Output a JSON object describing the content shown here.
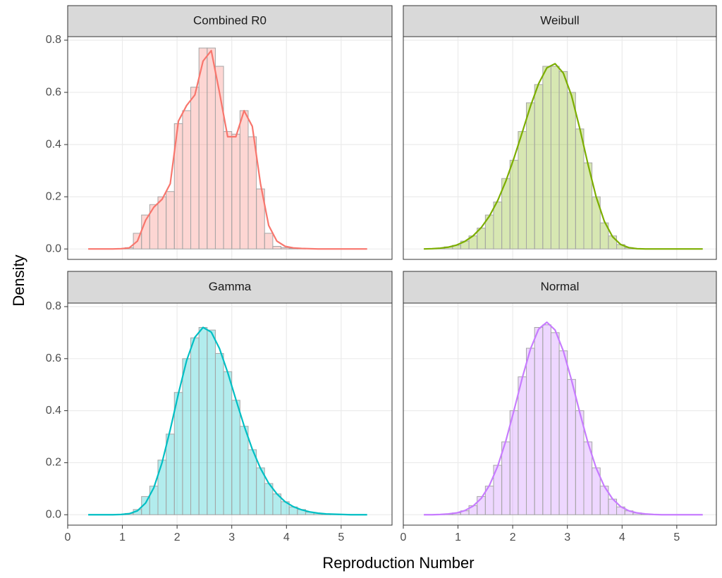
{
  "chart_data": {
    "type": "histogram",
    "x_label": "Reproduction Number",
    "y_label": "Density",
    "xlim": [
      0,
      5.93
    ],
    "xticks": [
      0,
      1,
      2,
      3,
      4,
      5
    ],
    "ylim": [
      -0.04,
      0.8135
    ],
    "yticks": [
      {
        "value": 0,
        "label": "0.0"
      },
      0.2,
      0.4,
      0.6,
      0.8
    ],
    "grid": true,
    "bins": [
      0.3,
      0.45,
      0.6,
      0.75,
      0.9,
      1.05,
      1.2,
      1.35,
      1.5,
      1.65,
      1.8,
      1.95,
      2.1,
      2.25,
      2.4,
      2.55,
      2.7,
      2.85,
      3.0,
      3.15,
      3.3,
      3.45,
      3.6,
      3.75,
      3.9,
      4.05,
      4.2,
      4.35,
      4.5,
      4.65,
      4.8,
      4.95,
      5.1,
      5.25,
      5.4,
      5.55
    ],
    "x": [
      0.375,
      0.525,
      0.675,
      0.825,
      0.975,
      1.125,
      1.275,
      1.425,
      1.575,
      1.725,
      1.875,
      2.025,
      2.175,
      2.325,
      2.475,
      2.625,
      2.775,
      2.925,
      3.075,
      3.225,
      3.375,
      3.525,
      3.675,
      3.825,
      3.975,
      4.125,
      4.275,
      4.425,
      4.575,
      4.725,
      4.875,
      5.025,
      5.175,
      5.325,
      5.475
    ],
    "panels": [
      {
        "name": "Combined R0",
        "color": "#F8766D",
        "values": [
          0,
          0,
          0,
          0,
          0.001,
          0.005,
          0.06,
          0.13,
          0.17,
          0.2,
          0.22,
          0.48,
          0.53,
          0.62,
          0.77,
          0.77,
          0.7,
          0.45,
          0.44,
          0.53,
          0.43,
          0.23,
          0.06,
          0.01,
          0.005,
          0.002,
          0.001,
          0,
          0,
          0,
          0,
          0,
          0,
          0,
          0
        ],
        "density": [
          0,
          0,
          0,
          0,
          0.001,
          0.004,
          0.03,
          0.11,
          0.16,
          0.19,
          0.25,
          0.49,
          0.55,
          0.59,
          0.72,
          0.76,
          0.6,
          0.43,
          0.43,
          0.53,
          0.47,
          0.25,
          0.09,
          0.03,
          0.01,
          0.004,
          0.002,
          0.001,
          0,
          0,
          0,
          0,
          0,
          0,
          0
        ]
      },
      {
        "name": "Weibull",
        "color": "#7CAE00",
        "values": [
          0,
          0.001,
          0.003,
          0.008,
          0.014,
          0.03,
          0.05,
          0.08,
          0.13,
          0.18,
          0.27,
          0.34,
          0.45,
          0.56,
          0.63,
          0.7,
          0.7,
          0.68,
          0.6,
          0.46,
          0.33,
          0.2,
          0.1,
          0.05,
          0.017,
          0.005,
          0.001,
          0,
          0,
          0,
          0,
          0,
          0,
          0,
          0
        ],
        "density": [
          0,
          0.001,
          0.003,
          0.007,
          0.015,
          0.029,
          0.05,
          0.082,
          0.126,
          0.185,
          0.26,
          0.349,
          0.447,
          0.547,
          0.634,
          0.694,
          0.71,
          0.674,
          0.588,
          0.463,
          0.326,
          0.2,
          0.106,
          0.047,
          0.017,
          0.005,
          0.001,
          0,
          0,
          0,
          0,
          0,
          0,
          0,
          0
        ]
      },
      {
        "name": "Gamma",
        "color": "#00BFC4",
        "values": [
          0,
          0,
          0,
          0,
          0.001,
          0.005,
          0.02,
          0.07,
          0.11,
          0.21,
          0.31,
          0.47,
          0.6,
          0.68,
          0.72,
          0.71,
          0.62,
          0.55,
          0.44,
          0.34,
          0.25,
          0.18,
          0.12,
          0.08,
          0.05,
          0.03,
          0.02,
          0.01,
          0.006,
          0.003,
          0.002,
          0.001,
          0,
          0,
          0
        ],
        "density": [
          0,
          0,
          0,
          0,
          0.001,
          0.004,
          0.015,
          0.045,
          0.104,
          0.2,
          0.327,
          0.466,
          0.593,
          0.682,
          0.72,
          0.702,
          0.639,
          0.547,
          0.443,
          0.342,
          0.252,
          0.178,
          0.121,
          0.08,
          0.05,
          0.031,
          0.019,
          0.011,
          0.006,
          0.003,
          0.002,
          0.001,
          0,
          0,
          0
        ]
      },
      {
        "name": "Normal",
        "color": "#C77CFF",
        "values": [
          0,
          0,
          0.001,
          0.003,
          0.007,
          0.015,
          0.035,
          0.07,
          0.11,
          0.19,
          0.28,
          0.4,
          0.53,
          0.64,
          0.72,
          0.73,
          0.7,
          0.63,
          0.52,
          0.4,
          0.28,
          0.18,
          0.11,
          0.06,
          0.03,
          0.015,
          0.007,
          0.003,
          0.001,
          0,
          0,
          0,
          0,
          0,
          0
        ],
        "density": [
          0,
          0,
          0.001,
          0.003,
          0.007,
          0.016,
          0.033,
          0.063,
          0.113,
          0.186,
          0.284,
          0.402,
          0.526,
          0.637,
          0.714,
          0.74,
          0.71,
          0.63,
          0.518,
          0.394,
          0.277,
          0.18,
          0.109,
          0.061,
          0.031,
          0.015,
          0.007,
          0.003,
          0.001,
          0,
          0,
          0,
          0,
          0,
          0
        ]
      }
    ]
  }
}
